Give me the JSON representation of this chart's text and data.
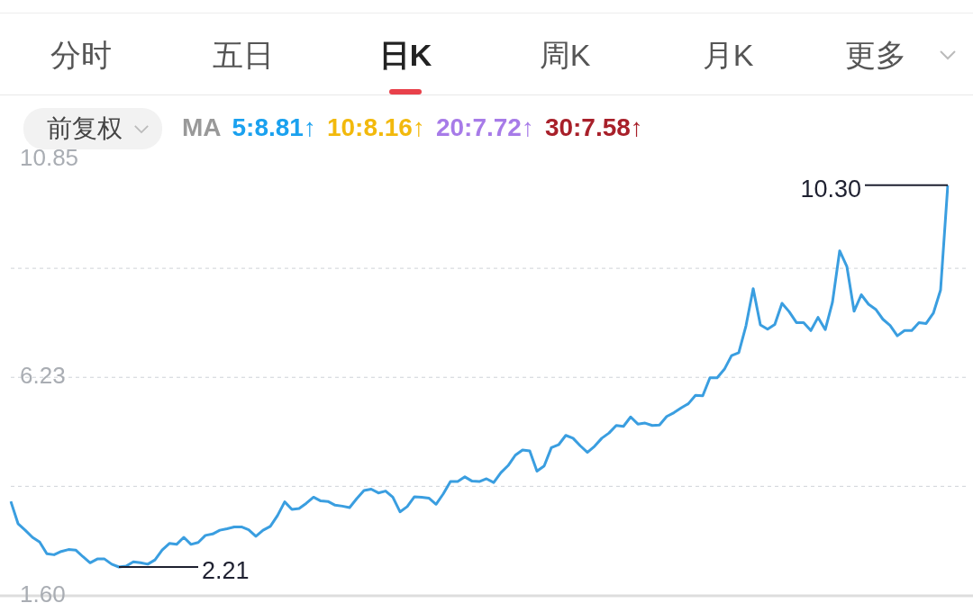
{
  "chart_data": {
    "type": "line",
    "categories": [
      null,
      null,
      null,
      null,
      null,
      null,
      null,
      null,
      null,
      null,
      null,
      null,
      null,
      null,
      null,
      null,
      null,
      null,
      null,
      null,
      null,
      null,
      null,
      null,
      null,
      null,
      null,
      null,
      null,
      null,
      null,
      null,
      null,
      null,
      null,
      null,
      null,
      null,
      null,
      null,
      null,
      null,
      null,
      null,
      null,
      null,
      null,
      null,
      null,
      null,
      null,
      null,
      null,
      null,
      null,
      null,
      null,
      null,
      null,
      null,
      null,
      null,
      null,
      null,
      null,
      null,
      null,
      null,
      null,
      null,
      null,
      null,
      null,
      null,
      null,
      null,
      null,
      null,
      null,
      null,
      null,
      null,
      null,
      null,
      null,
      null,
      null,
      null,
      null,
      null,
      null,
      null,
      null,
      null,
      null,
      null,
      null,
      null,
      null,
      null,
      null,
      null,
      null,
      null,
      null,
      null,
      null,
      null,
      null,
      null,
      null,
      null,
      null,
      null,
      null,
      null,
      null,
      null,
      null,
      null,
      null,
      null,
      null,
      null,
      null,
      null,
      null,
      null,
      null,
      null,
      null
    ],
    "series": [
      {
        "color": "#3a9ee0",
        "values": [
          3.6,
          3.13,
          2.99,
          2.84,
          2.74,
          2.49,
          2.47,
          2.54,
          2.58,
          2.57,
          2.43,
          2.3,
          2.38,
          2.38,
          2.27,
          2.21,
          2.23,
          2.32,
          2.3,
          2.27,
          2.36,
          2.57,
          2.71,
          2.69,
          2.84,
          2.69,
          2.73,
          2.88,
          2.91,
          2.99,
          3.02,
          3.06,
          3.06,
          3.0,
          2.86,
          2.99,
          3.07,
          3.3,
          3.59,
          3.43,
          3.45,
          3.56,
          3.69,
          3.61,
          3.6,
          3.52,
          3.5,
          3.47,
          3.66,
          3.83,
          3.86,
          3.78,
          3.82,
          3.69,
          3.38,
          3.49,
          3.7,
          3.69,
          3.67,
          3.54,
          3.76,
          4.02,
          4.02,
          4.12,
          4.03,
          4.02,
          4.08,
          4.0,
          4.21,
          4.36,
          4.58,
          4.69,
          4.67,
          4.24,
          4.35,
          4.74,
          4.8,
          5.0,
          4.94,
          4.78,
          4.64,
          4.77,
          4.94,
          5.05,
          5.21,
          5.19,
          5.39,
          5.24,
          5.26,
          5.21,
          5.22,
          5.4,
          5.48,
          5.58,
          5.67,
          5.85,
          5.84,
          6.22,
          6.22,
          6.4,
          6.69,
          6.75,
          7.32,
          8.11,
          7.34,
          7.25,
          7.35,
          7.8,
          7.62,
          7.39,
          7.39,
          7.22,
          7.5,
          7.24,
          7.82,
          8.91,
          8.58,
          7.63,
          7.98,
          7.78,
          7.67,
          7.46,
          7.33,
          7.11,
          7.22,
          7.22,
          7.39,
          7.37,
          7.59,
          8.08,
          10.3
        ]
      }
    ],
    "ylim": [
      1.6,
      10.85
    ],
    "yticks": [
      {
        "value": 1.6,
        "label": "1.60"
      },
      {
        "value": 3.92,
        "label": null
      },
      {
        "value": 6.23,
        "label": "6.23"
      },
      {
        "value": 8.54,
        "label": null
      },
      {
        "value": 10.85,
        "label": "10.85"
      }
    ],
    "grid": "y",
    "legend": false,
    "marker": "none",
    "line_style": "solid",
    "annotations": [
      "分时",
      "五日",
      "日K",
      "周K",
      "月K",
      "更多",
      "前复权",
      "MA",
      "5:8.81↑",
      "10:8.16↑",
      "20:7.72↑",
      "30:7.58↑",
      "10.30",
      "2.21"
    ]
  }
}
